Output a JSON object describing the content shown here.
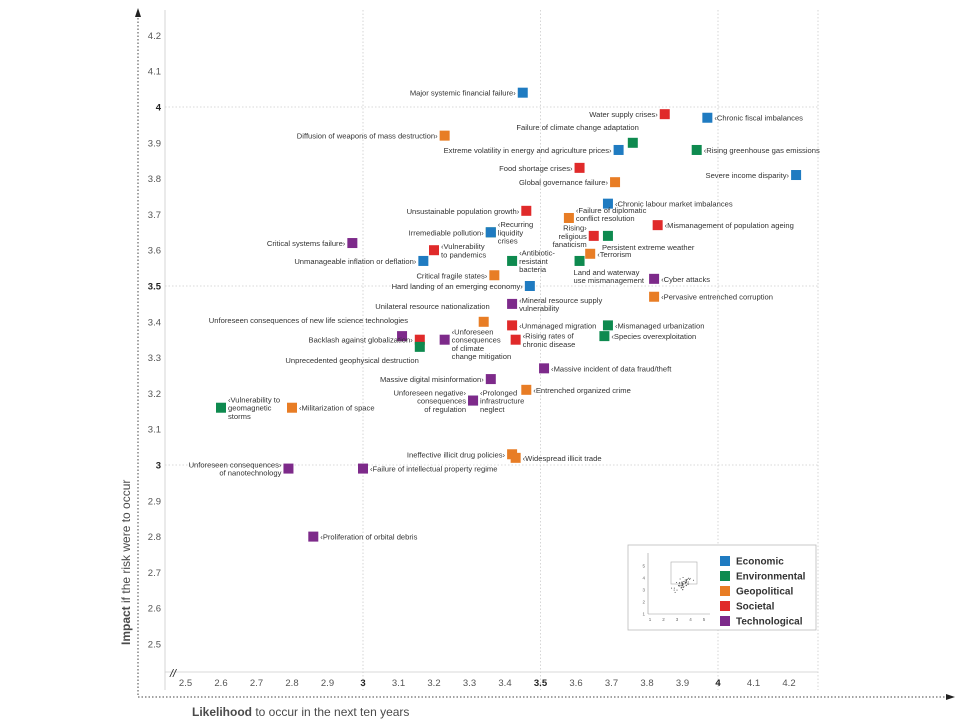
{
  "chart_data": {
    "type": "scatter",
    "xlabel_bold": "Likelihood",
    "xlabel_rest": " to occur in the next ten years",
    "ylabel_bold": "Impact",
    "ylabel_rest": " if the risk were to occur",
    "xlim": [
      2.45,
      4.25
    ],
    "ylim": [
      2.45,
      4.25
    ],
    "x_ticks": [
      "2.5",
      "2.6",
      "2.7",
      "2.8",
      "2.9",
      "3",
      "3.1",
      "3.2",
      "3.3",
      "3.4",
      "3.5",
      "3.6",
      "3.7",
      "3.8",
      "3.9",
      "4",
      "4.1",
      "4.2"
    ],
    "y_ticks": [
      "2.5",
      "2.6",
      "2.7",
      "2.8",
      "2.9",
      "3",
      "3.1",
      "3.2",
      "3.3",
      "3.4",
      "3.5",
      "3.6",
      "3.7",
      "3.8",
      "3.9",
      "4",
      "4.1",
      "4.2"
    ],
    "bold_ticks": [
      "3",
      "3.5",
      "4"
    ],
    "gridlines": [
      3,
      3.5,
      4
    ],
    "axis_break": "//",
    "legend_position": "bottom-right",
    "categories": [
      {
        "name": "Economic",
        "color": "#1f7bc1"
      },
      {
        "name": "Environmental",
        "color": "#0e8a4f"
      },
      {
        "name": "Geopolitical",
        "color": "#e87d25"
      },
      {
        "name": "Societal",
        "color": "#e02a2a"
      },
      {
        "name": "Technological",
        "color": "#7d2a8a"
      }
    ],
    "points": [
      {
        "label": "Major systemic financial failure",
        "x": 3.45,
        "y": 4.04,
        "cat": 0,
        "side": "left",
        "dy": 0
      },
      {
        "label": "Water supply crises",
        "x": 3.85,
        "y": 3.98,
        "cat": 3,
        "side": "left",
        "dy": 0
      },
      {
        "label": "Chronic fiscal imbalances",
        "x": 3.97,
        "y": 3.97,
        "cat": 0,
        "side": "right",
        "dy": 0
      },
      {
        "label": "Diffusion of weapons of mass destruction",
        "x": 3.23,
        "y": 3.92,
        "cat": 2,
        "side": "left",
        "dy": 0
      },
      {
        "label": "Failure of climate change adaptation",
        "x": 3.76,
        "y": 3.9,
        "cat": 1,
        "side": "above",
        "dy": 0
      },
      {
        "label": "Extreme volatility in energy and agriculture prices",
        "x": 3.72,
        "y": 3.88,
        "cat": 0,
        "side": "left",
        "dy": 0
      },
      {
        "label": "Rising greenhouse gas emissions",
        "x": 3.94,
        "y": 3.88,
        "cat": 1,
        "side": "right",
        "dy": 0
      },
      {
        "label": "Food shortage crises",
        "x": 3.61,
        "y": 3.83,
        "cat": 3,
        "side": "left",
        "dy": 0
      },
      {
        "label": "Severe income disparity",
        "x": 4.22,
        "y": 3.81,
        "cat": 0,
        "side": "left",
        "dy": 0
      },
      {
        "label": "Global governance failure",
        "x": 3.71,
        "y": 3.79,
        "cat": 2,
        "side": "left",
        "dy": 0
      },
      {
        "label": "Chronic labour market imbalances",
        "x": 3.69,
        "y": 3.73,
        "cat": 0,
        "side": "right",
        "dy": 0
      },
      {
        "label": "Unsustainable population growth",
        "x": 3.46,
        "y": 3.71,
        "cat": 3,
        "side": "left",
        "dy": 0
      },
      {
        "label": "Failure of diplomatic|conflict resolution",
        "x": 3.58,
        "y": 3.69,
        "cat": 2,
        "side": "right",
        "dy": -4
      },
      {
        "label": "Mismanagement of population ageing",
        "x": 3.83,
        "y": 3.67,
        "cat": 3,
        "side": "right",
        "dy": 0
      },
      {
        "label": "Irremediable pollution",
        "x": 3.36,
        "y": 3.65,
        "cat": 1,
        "side": "left",
        "dy": 0
      },
      {
        "label": "Recurring|liquidity|crises",
        "x": 3.36,
        "y": 3.65,
        "cat": 0,
        "side": "right",
        "dy": 0
      },
      {
        "label": "Rising|religious|fanaticism",
        "x": 3.65,
        "y": 3.64,
        "cat": 3,
        "side": "left",
        "dy": 0
      },
      {
        "label": "Persistent extreme weather",
        "x": 3.69,
        "y": 3.64,
        "cat": 1,
        "side": "belowlbl",
        "dy": 0
      },
      {
        "label": "Critical systems failure",
        "x": 2.97,
        "y": 3.62,
        "cat": 4,
        "side": "left",
        "dy": 0
      },
      {
        "label": "Vulnerability|to pandemics",
        "x": 3.2,
        "y": 3.6,
        "cat": 3,
        "side": "right",
        "dy": 0
      },
      {
        "label": "Terrorism",
        "x": 3.64,
        "y": 3.59,
        "cat": 2,
        "side": "right",
        "dy": 0
      },
      {
        "label": "Unmanageable inflation or deflation",
        "x": 3.17,
        "y": 3.57,
        "cat": 0,
        "side": "left",
        "dy": 0
      },
      {
        "label": "Antibiotic-|resistant|bacteria",
        "x": 3.42,
        "y": 3.57,
        "cat": 1,
        "side": "right",
        "dy": 0
      },
      {
        "label": "Land and waterway|use mismanagement",
        "x": 3.61,
        "y": 3.57,
        "cat": 1,
        "side": "belowlbl",
        "dy": 0
      },
      {
        "label": "Critical fragile states",
        "x": 3.37,
        "y": 3.53,
        "cat": 2,
        "side": "left",
        "dy": 0
      },
      {
        "label": "Cyber attacks",
        "x": 3.82,
        "y": 3.52,
        "cat": 4,
        "side": "right",
        "dy": 0
      },
      {
        "label": "Hard landing of an emerging economy",
        "x": 3.47,
        "y": 3.5,
        "cat": 0,
        "side": "left",
        "dy": 0
      },
      {
        "label": "Pervasive entrenched corruption",
        "x": 3.82,
        "y": 3.47,
        "cat": 2,
        "side": "right",
        "dy": 0
      },
      {
        "label": "Mineral resource supply|vulnerability",
        "x": 3.42,
        "y": 3.45,
        "cat": 4,
        "side": "right",
        "dy": 0
      },
      {
        "label": "Unilateral resource nationalization",
        "x": 3.34,
        "y": 3.4,
        "cat": 2,
        "side": "abovelbl",
        "dy": 0
      },
      {
        "label": "Unforeseen consequences of new life science technologies",
        "x": 3.11,
        "y": 3.36,
        "cat": 4,
        "side": "abovelbl",
        "dy": 0
      },
      {
        "label": "Unmanaged migration",
        "x": 3.42,
        "y": 3.39,
        "cat": 3,
        "side": "right",
        "dy": 0
      },
      {
        "label": "Mismanaged urbanization",
        "x": 3.69,
        "y": 3.39,
        "cat": 1,
        "side": "right",
        "dy": 0
      },
      {
        "label": "Species overexploitation",
        "x": 3.68,
        "y": 3.36,
        "cat": 1,
        "side": "right",
        "dy": 0
      },
      {
        "label": "Backlash against globalization",
        "x": 3.16,
        "y": 3.35,
        "cat": 3,
        "side": "left",
        "dy": 0
      },
      {
        "label": "Unprecedented geophysical destruction",
        "x": 3.16,
        "y": 3.33,
        "cat": 1,
        "side": "leftdown",
        "dy": 0
      },
      {
        "label": "Unforeseen|consequences|of climate|change mitigation",
        "x": 3.23,
        "y": 3.35,
        "cat": 4,
        "side": "right",
        "dy": 0
      },
      {
        "label": "Rising rates of|chronic disease",
        "x": 3.43,
        "y": 3.35,
        "cat": 3,
        "side": "right",
        "dy": 0
      },
      {
        "label": "Massive incident of data fraud/theft",
        "x": 3.51,
        "y": 3.27,
        "cat": 4,
        "side": "right",
        "dy": 0
      },
      {
        "label": "Massive digital misinformation",
        "x": 3.36,
        "y": 3.24,
        "cat": 4,
        "side": "left",
        "dy": 0
      },
      {
        "label": "Entrenched organized crime",
        "x": 3.46,
        "y": 3.21,
        "cat": 2,
        "side": "right",
        "dy": 0
      },
      {
        "label": "Unforeseen negative|consequences|of regulation",
        "x": 3.31,
        "y": 3.18,
        "cat": 0,
        "side": "left",
        "dy": 0
      },
      {
        "label": "Prolonged|infrastructure|neglect",
        "x": 3.31,
        "y": 3.18,
        "cat": 4,
        "side": "right",
        "dy": 0
      },
      {
        "label": "Vulnerability to|geomagnetic|storms",
        "x": 2.6,
        "y": 3.16,
        "cat": 1,
        "side": "right",
        "dy": 0
      },
      {
        "label": "Militarization of space",
        "x": 2.8,
        "y": 3.16,
        "cat": 2,
        "side": "right",
        "dy": 0
      },
      {
        "label": "Ineffective illicit drug policies",
        "x": 3.42,
        "y": 3.03,
        "cat": 2,
        "side": "left",
        "dy": 0
      },
      {
        "label": "Widespread illicit trade",
        "x": 3.43,
        "y": 3.02,
        "cat": 2,
        "side": "right",
        "dy": 0
      },
      {
        "label": "Unforeseen consequences|of nanotechnology",
        "x": 2.79,
        "y": 2.99,
        "cat": 4,
        "side": "left",
        "dy": 0
      },
      {
        "label": "Failure of intellectual property regime",
        "x": 3.0,
        "y": 2.99,
        "cat": 4,
        "side": "right",
        "dy": 0
      },
      {
        "label": "Proliferation of orbital debris",
        "x": 2.86,
        "y": 2.8,
        "cat": 4,
        "side": "right",
        "dy": 0
      }
    ],
    "inset_x_ticks": [
      "1",
      "2",
      "3",
      "4",
      "5"
    ],
    "inset_y_ticks": [
      "1",
      "2",
      "3",
      "4",
      "5"
    ]
  }
}
